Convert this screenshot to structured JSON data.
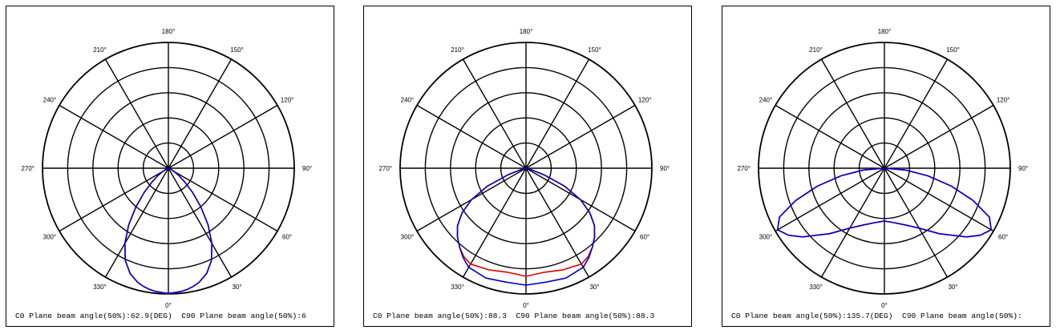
{
  "chart_data": [
    {
      "type": "polar",
      "grid": true,
      "angle_labels": [
        "180°",
        "150°",
        "120°",
        "90°",
        "60°",
        "30°",
        "0°",
        "330°",
        "300°",
        "270°",
        "240°",
        "210°"
      ],
      "series_colors": [
        "#dd0000",
        "#0000cc"
      ],
      "captions": [
        "C0 Plane beam angle(50%):62.9(DEG)",
        "C90 Plane beam angle(50%):6"
      ],
      "series": [
        {
          "color": "#dd0000",
          "angles": [
            0,
            3,
            6,
            9,
            12,
            15,
            20,
            25,
            30,
            35,
            40,
            45,
            50,
            55,
            60,
            65,
            70,
            75,
            80,
            85,
            90
          ],
          "values": [
            1.0,
            0.99,
            0.985,
            0.975,
            0.96,
            0.94,
            0.89,
            0.81,
            0.69,
            0.55,
            0.4,
            0.27,
            0.17,
            0.1,
            0.05,
            0.02,
            0.005,
            0,
            0,
            0,
            0
          ]
        },
        {
          "color": "#0000cc",
          "angles": [
            0,
            3,
            6,
            9,
            12,
            15,
            20,
            25,
            30,
            35,
            40,
            45,
            50,
            55,
            60,
            65,
            70,
            75,
            80,
            85,
            90
          ],
          "values": [
            0.995,
            0.99,
            0.985,
            0.975,
            0.96,
            0.94,
            0.89,
            0.81,
            0.69,
            0.55,
            0.4,
            0.27,
            0.17,
            0.1,
            0.05,
            0.02,
            0.005,
            0,
            0,
            0,
            0
          ]
        }
      ]
    },
    {
      "type": "polar",
      "grid": true,
      "angle_labels": [
        "180°",
        "150°",
        "120°",
        "90°",
        "60°",
        "30°",
        "0°",
        "330°",
        "300°",
        "270°",
        "240°",
        "210°"
      ],
      "series_colors": [
        "#dd0000",
        "#0000cc"
      ],
      "captions": [
        "C0 Plane beam angle(50%):88.3",
        "C90 Plane beam angle(50%):88.3"
      ],
      "series": [
        {
          "color": "#dd0000",
          "angles": [
            0,
            10,
            20,
            30,
            35,
            40,
            45,
            50,
            55,
            60,
            65,
            70,
            80,
            90
          ],
          "values": [
            0.86,
            0.84,
            0.86,
            0.88,
            0.86,
            0.82,
            0.77,
            0.71,
            0.62,
            0.5,
            0.34,
            0.15,
            0.02,
            0
          ]
        },
        {
          "color": "#0000cc",
          "angles": [
            0,
            10,
            20,
            30,
            35,
            40,
            45,
            50,
            55,
            60,
            65,
            70,
            80,
            90
          ],
          "values": [
            0.93,
            0.92,
            0.93,
            0.91,
            0.87,
            0.82,
            0.77,
            0.71,
            0.62,
            0.5,
            0.34,
            0.15,
            0.02,
            0
          ]
        }
      ]
    },
    {
      "type": "polar",
      "grid": true,
      "angle_labels": [
        "180°",
        "150°",
        "120°",
        "90°",
        "60°",
        "30°",
        "0°",
        "330°",
        "300°",
        "270°",
        "240°",
        "210°"
      ],
      "series_colors": [
        "#dd0000",
        "#0000cc"
      ],
      "captions": [
        "C0 Plane beam angle(50%):135.7(DEG)",
        "C90 Plane beam angle(50%):"
      ],
      "series": [
        {
          "color": "#dd0000",
          "angles": [
            0,
            10,
            20,
            30,
            40,
            50,
            55,
            60,
            65,
            70,
            75,
            80,
            85,
            90
          ],
          "values": [
            0.42,
            0.44,
            0.48,
            0.55,
            0.68,
            0.85,
            0.93,
            0.98,
            0.92,
            0.75,
            0.55,
            0.35,
            0.17,
            0
          ]
        },
        {
          "color": "#0000cc",
          "angles": [
            0,
            10,
            20,
            30,
            40,
            50,
            55,
            60,
            65,
            70,
            75,
            80,
            85,
            90
          ],
          "values": [
            0.42,
            0.44,
            0.48,
            0.55,
            0.68,
            0.85,
            0.93,
            0.98,
            0.92,
            0.75,
            0.55,
            0.35,
            0.17,
            0
          ]
        }
      ]
    }
  ]
}
